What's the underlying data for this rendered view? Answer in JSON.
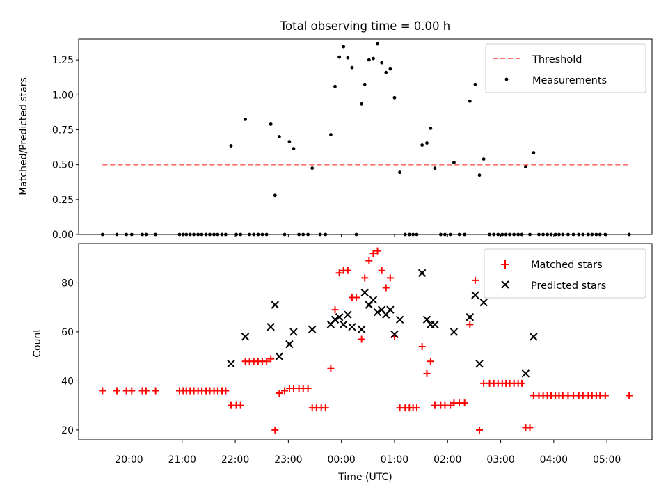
{
  "chart_data": [
    {
      "type": "scatter",
      "title": "Total observing time = 0.00 h",
      "xlabel": "",
      "ylabel": "Matched/Predicted stars",
      "x_unit": "hours UTC (decimal; >24 = next day)",
      "xlim": [
        19.05,
        29.85
      ],
      "ylim": [
        0,
        1.4
      ],
      "yticks": [
        0.0,
        0.25,
        0.5,
        0.75,
        1.0,
        1.25
      ],
      "ytick_labels": [
        "0.00",
        "0.25",
        "0.50",
        "0.75",
        "1.00",
        "1.25"
      ],
      "xticks": [
        20,
        21,
        22,
        23,
        24,
        25,
        26,
        27,
        28,
        29
      ],
      "xtick_labels_visible": false,
      "legend": "top-right",
      "threshold": {
        "name": "Threshold",
        "y": 0.5,
        "x_range": [
          19.5,
          29.4
        ],
        "color": "#ff7070",
        "style": "dashed"
      },
      "series": [
        {
          "name": "Measurements",
          "color": "#000000",
          "marker": "dot",
          "points": [
            [
              19.5,
              0
            ],
            [
              19.77,
              0
            ],
            [
              19.95,
              0
            ],
            [
              20.05,
              0
            ],
            [
              20.25,
              0
            ],
            [
              20.32,
              0
            ],
            [
              20.5,
              0
            ],
            [
              20.95,
              0
            ],
            [
              21.02,
              0
            ],
            [
              21.08,
              0
            ],
            [
              21.15,
              0
            ],
            [
              21.22,
              0
            ],
            [
              21.3,
              0
            ],
            [
              21.37,
              0
            ],
            [
              21.45,
              0
            ],
            [
              21.52,
              0
            ],
            [
              21.6,
              0
            ],
            [
              21.67,
              0
            ],
            [
              21.75,
              0
            ],
            [
              21.82,
              0
            ],
            [
              21.92,
              0.635
            ],
            [
              22.02,
              0
            ],
            [
              22.1,
              0
            ],
            [
              22.19,
              0.825
            ],
            [
              22.27,
              0
            ],
            [
              22.35,
              0
            ],
            [
              22.43,
              0
            ],
            [
              22.51,
              0
            ],
            [
              22.59,
              0
            ],
            [
              22.67,
              0.79
            ],
            [
              22.75,
              0.28
            ],
            [
              22.83,
              0.7
            ],
            [
              22.93,
              0
            ],
            [
              23.02,
              0.665
            ],
            [
              23.1,
              0.615
            ],
            [
              23.2,
              0
            ],
            [
              23.28,
              0
            ],
            [
              23.37,
              0
            ],
            [
              23.45,
              0.475
            ],
            [
              23.6,
              0
            ],
            [
              23.7,
              0
            ],
            [
              23.8,
              0.715
            ],
            [
              23.88,
              1.06
            ],
            [
              23.96,
              1.27
            ],
            [
              24.04,
              1.345
            ],
            [
              24.12,
              1.265
            ],
            [
              24.2,
              1.195
            ],
            [
              24.28,
              0
            ],
            [
              24.38,
              0.935
            ],
            [
              24.44,
              1.075
            ],
            [
              24.52,
              1.25
            ],
            [
              24.6,
              1.26
            ],
            [
              24.68,
              1.365
            ],
            [
              24.76,
              1.23
            ],
            [
              24.84,
              1.16
            ],
            [
              24.92,
              1.185
            ],
            [
              25.0,
              0.98
            ],
            [
              25.1,
              0.445
            ],
            [
              25.2,
              0
            ],
            [
              25.28,
              0
            ],
            [
              25.35,
              0
            ],
            [
              25.42,
              0
            ],
            [
              25.52,
              0.64
            ],
            [
              25.61,
              0.655
            ],
            [
              25.68,
              0.76
            ],
            [
              25.76,
              0.475
            ],
            [
              25.87,
              0
            ],
            [
              25.95,
              0
            ],
            [
              26.05,
              0
            ],
            [
              26.12,
              0.515
            ],
            [
              26.22,
              0
            ],
            [
              26.32,
              0
            ],
            [
              26.42,
              0.955
            ],
            [
              26.52,
              1.075
            ],
            [
              26.6,
              0.425
            ],
            [
              26.68,
              0.54
            ],
            [
              26.79,
              0
            ],
            [
              26.87,
              0
            ],
            [
              26.95,
              0
            ],
            [
              27.03,
              0
            ],
            [
              27.1,
              0
            ],
            [
              27.17,
              0
            ],
            [
              27.25,
              0
            ],
            [
              27.33,
              0
            ],
            [
              27.4,
              0
            ],
            [
              27.47,
              0.485
            ],
            [
              27.55,
              0
            ],
            [
              27.62,
              0.585
            ],
            [
              27.72,
              0
            ],
            [
              27.8,
              0
            ],
            [
              27.88,
              0
            ],
            [
              27.95,
              0
            ],
            [
              28.03,
              0
            ],
            [
              28.1,
              0
            ],
            [
              28.17,
              0
            ],
            [
              28.27,
              0
            ],
            [
              28.37,
              0
            ],
            [
              28.47,
              0
            ],
            [
              28.55,
              0
            ],
            [
              28.65,
              0
            ],
            [
              28.72,
              0
            ],
            [
              28.8,
              0
            ],
            [
              28.87,
              0
            ],
            [
              28.97,
              0
            ],
            [
              29.42,
              0
            ]
          ]
        }
      ]
    },
    {
      "type": "scatter",
      "title": "",
      "xlabel": "Time (UTC)",
      "ylabel": "Count",
      "x_unit": "hours UTC (decimal; >24 = next day)",
      "xlim": [
        19.05,
        29.85
      ],
      "ylim": [
        16,
        96
      ],
      "yticks": [
        20,
        40,
        60,
        80
      ],
      "ytick_labels": [
        "20",
        "40",
        "60",
        "80"
      ],
      "xticks": [
        20,
        21,
        22,
        23,
        24,
        25,
        26,
        27,
        28,
        29
      ],
      "xtick_labels": [
        "20:00",
        "21:00",
        "22:00",
        "23:00",
        "00:00",
        "01:00",
        "02:00",
        "03:00",
        "04:00",
        "05:00"
      ],
      "legend": "top-right",
      "series": [
        {
          "name": "Matched stars",
          "color": "#ff0000",
          "marker": "plus",
          "points": [
            [
              19.5,
              36
            ],
            [
              19.77,
              36
            ],
            [
              19.95,
              36
            ],
            [
              20.05,
              36
            ],
            [
              20.25,
              36
            ],
            [
              20.32,
              36
            ],
            [
              20.5,
              36
            ],
            [
              20.95,
              36
            ],
            [
              21.02,
              36
            ],
            [
              21.08,
              36
            ],
            [
              21.15,
              36
            ],
            [
              21.22,
              36
            ],
            [
              21.3,
              36
            ],
            [
              21.37,
              36
            ],
            [
              21.45,
              36
            ],
            [
              21.52,
              36
            ],
            [
              21.6,
              36
            ],
            [
              21.67,
              36
            ],
            [
              21.75,
              36
            ],
            [
              21.82,
              36
            ],
            [
              21.92,
              30
            ],
            [
              22.02,
              30
            ],
            [
              22.1,
              30
            ],
            [
              22.19,
              48
            ],
            [
              22.27,
              48
            ],
            [
              22.35,
              48
            ],
            [
              22.43,
              48
            ],
            [
              22.51,
              48
            ],
            [
              22.59,
              48
            ],
            [
              22.67,
              49
            ],
            [
              22.75,
              20
            ],
            [
              22.83,
              35
            ],
            [
              22.93,
              36
            ],
            [
              23.02,
              37
            ],
            [
              23.1,
              37
            ],
            [
              23.2,
              37
            ],
            [
              23.28,
              37
            ],
            [
              23.37,
              37
            ],
            [
              23.45,
              29
            ],
            [
              23.53,
              29
            ],
            [
              23.62,
              29
            ],
            [
              23.7,
              29
            ],
            [
              23.8,
              45
            ],
            [
              23.88,
              69
            ],
            [
              23.96,
              84
            ],
            [
              24.04,
              85
            ],
            [
              24.12,
              85
            ],
            [
              24.2,
              74
            ],
            [
              24.28,
              74
            ],
            [
              24.38,
              57
            ],
            [
              24.44,
              82
            ],
            [
              24.52,
              89
            ],
            [
              24.6,
              92
            ],
            [
              24.68,
              93
            ],
            [
              24.76,
              85
            ],
            [
              24.84,
              78
            ],
            [
              24.92,
              82
            ],
            [
              25.0,
              58
            ],
            [
              25.1,
              29
            ],
            [
              25.2,
              29
            ],
            [
              25.28,
              29
            ],
            [
              25.35,
              29
            ],
            [
              25.42,
              29
            ],
            [
              25.52,
              54
            ],
            [
              25.61,
              43
            ],
            [
              25.68,
              48
            ],
            [
              25.76,
              30
            ],
            [
              25.87,
              30
            ],
            [
              25.95,
              30
            ],
            [
              26.05,
              30
            ],
            [
              26.12,
              31
            ],
            [
              26.22,
              31
            ],
            [
              26.32,
              31
            ],
            [
              26.42,
              63
            ],
            [
              26.52,
              81
            ],
            [
              26.6,
              20
            ],
            [
              26.68,
              39
            ],
            [
              26.79,
              39
            ],
            [
              26.87,
              39
            ],
            [
              26.95,
              39
            ],
            [
              27.03,
              39
            ],
            [
              27.1,
              39
            ],
            [
              27.17,
              39
            ],
            [
              27.25,
              39
            ],
            [
              27.33,
              39
            ],
            [
              27.4,
              39
            ],
            [
              27.47,
              21
            ],
            [
              27.55,
              21
            ],
            [
              27.62,
              34
            ],
            [
              27.72,
              34
            ],
            [
              27.8,
              34
            ],
            [
              27.88,
              34
            ],
            [
              27.95,
              34
            ],
            [
              28.03,
              34
            ],
            [
              28.1,
              34
            ],
            [
              28.17,
              34
            ],
            [
              28.27,
              34
            ],
            [
              28.37,
              34
            ],
            [
              28.47,
              34
            ],
            [
              28.55,
              34
            ],
            [
              28.65,
              34
            ],
            [
              28.72,
              34
            ],
            [
              28.8,
              34
            ],
            [
              28.87,
              34
            ],
            [
              28.97,
              34
            ],
            [
              29.42,
              34
            ]
          ]
        },
        {
          "name": "Predicted stars",
          "color": "#000000",
          "marker": "x",
          "points": [
            [
              21.92,
              47
            ],
            [
              22.19,
              58
            ],
            [
              22.67,
              62
            ],
            [
              22.75,
              71
            ],
            [
              22.83,
              50
            ],
            [
              23.02,
              55
            ],
            [
              23.1,
              60
            ],
            [
              23.45,
              61
            ],
            [
              23.8,
              63
            ],
            [
              23.88,
              65
            ],
            [
              23.96,
              66
            ],
            [
              24.04,
              63
            ],
            [
              24.12,
              67
            ],
            [
              24.2,
              62
            ],
            [
              24.38,
              61
            ],
            [
              24.44,
              76
            ],
            [
              24.52,
              71
            ],
            [
              24.6,
              73
            ],
            [
              24.68,
              68
            ],
            [
              24.76,
              69
            ],
            [
              24.84,
              67
            ],
            [
              24.92,
              69
            ],
            [
              25.0,
              59
            ],
            [
              25.1,
              65
            ],
            [
              25.52,
              84
            ],
            [
              25.61,
              65
            ],
            [
              25.68,
              63
            ],
            [
              25.76,
              63
            ],
            [
              26.12,
              60
            ],
            [
              26.42,
              66
            ],
            [
              26.52,
              75
            ],
            [
              26.6,
              47
            ],
            [
              26.68,
              72
            ],
            [
              27.47,
              43
            ],
            [
              27.62,
              58
            ]
          ]
        }
      ]
    }
  ]
}
